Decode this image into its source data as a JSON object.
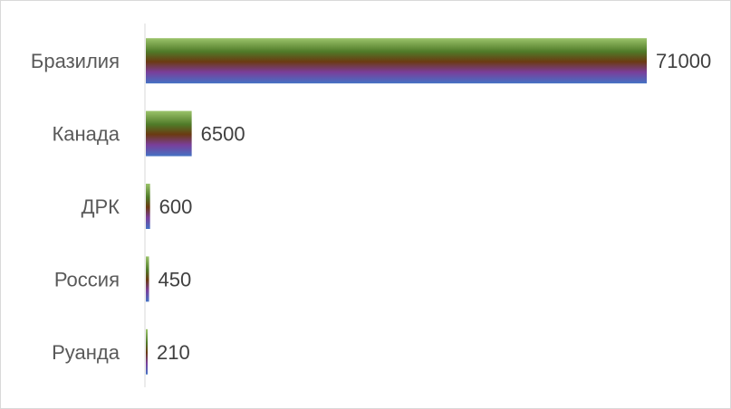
{
  "chart_data": {
    "type": "bar",
    "orientation": "horizontal",
    "title": "",
    "xlabel": "",
    "ylabel": "",
    "categories": [
      "Бразилия",
      "Канада",
      "ДРК",
      "Россия",
      "Руанда"
    ],
    "values": [
      71000,
      6500,
      600,
      450,
      210
    ],
    "data_labels": [
      "71000",
      "6500",
      "600",
      "450",
      "210"
    ],
    "xlim": [
      0,
      71000
    ],
    "grid": false,
    "legend": "none",
    "bar_gradient": [
      "#9bc36a",
      "#4f7a28",
      "#6b3a12",
      "#7a3e9a",
      "#4472c4"
    ]
  }
}
